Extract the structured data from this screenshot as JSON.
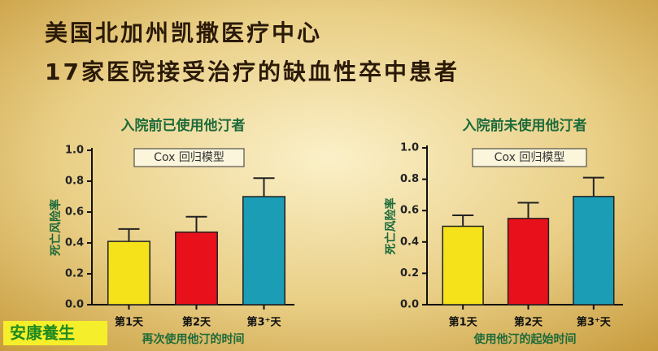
{
  "slide_title": [
    "美国北加州凯撒医疗中心",
    "17家医院接受治疗的缺血性卒中患者"
  ],
  "watermark": "安康養生",
  "chart_data": [
    {
      "type": "bar",
      "title": "入院前已使用他汀者",
      "annotation": "Cox 回归模型",
      "ylabel": "死亡风险率",
      "xlabel": "再次使用他汀的时间",
      "categories": [
        "第1天",
        "第2天",
        "第3⁺天"
      ],
      "values": [
        0.41,
        0.47,
        0.7
      ],
      "errors": [
        0.08,
        0.1,
        0.12
      ],
      "colors": [
        "#f5e21a",
        "#e8101a",
        "#1a9db5"
      ],
      "ylim": [
        0,
        1.0
      ],
      "yticks": [
        {
          "value": 0,
          "label": "0.0"
        },
        0.2,
        0.4,
        0.6,
        0.8,
        {
          "value": 1,
          "label": "1.0"
        }
      ]
    },
    {
      "type": "bar",
      "title": "入院前未使用他汀者",
      "annotation": "Cox 回归模型",
      "ylabel": "死亡风险率",
      "xlabel": "使用他汀的起始时间",
      "categories": [
        "第1天",
        "第2天",
        "第3⁺天"
      ],
      "values": [
        0.5,
        0.55,
        0.69
      ],
      "errors": [
        0.07,
        0.1,
        0.12
      ],
      "colors": [
        "#f5e21a",
        "#e8101a",
        "#1a9db5"
      ],
      "ylim": [
        0,
        1.0
      ],
      "yticks": [
        {
          "value": 0,
          "label": "0.0"
        },
        0.2,
        0.4,
        0.6,
        0.8,
        {
          "value": 1,
          "label": "1.0"
        }
      ]
    }
  ]
}
